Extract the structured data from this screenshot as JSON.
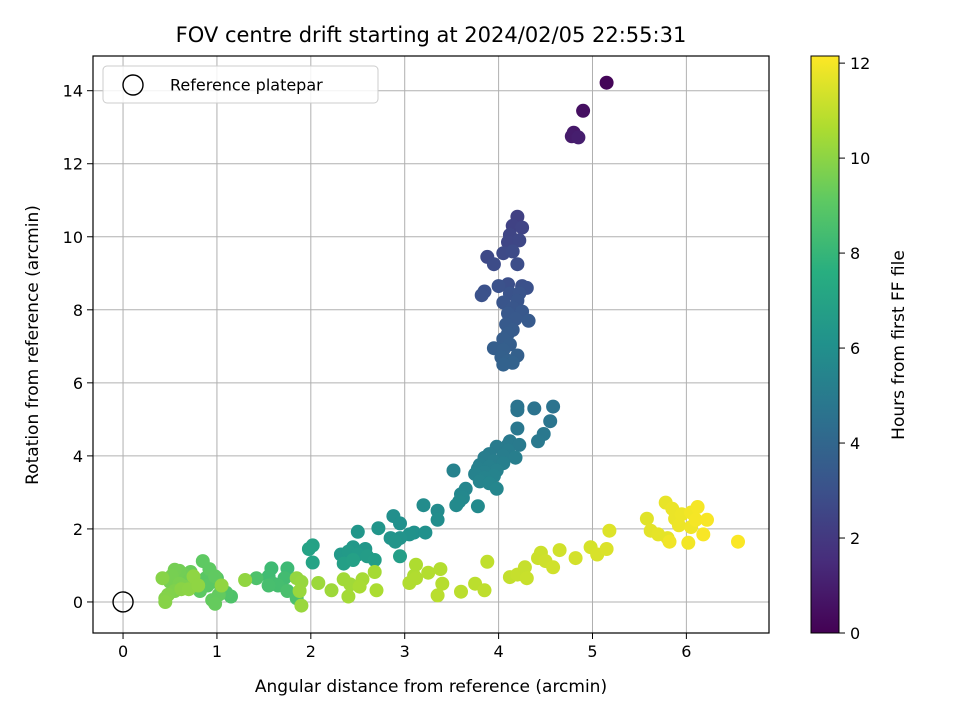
{
  "chart_data": {
    "type": "scatter",
    "title": "FOV centre drift starting at 2024/02/05 22:55:31",
    "xlabel": "Angular distance from reference (arcmin)",
    "ylabel": "Rotation from reference (arcmin)",
    "xlim": [
      -0.32,
      6.88
    ],
    "ylim": [
      -0.85,
      14.95
    ],
    "xticks": [
      0,
      1,
      2,
      3,
      4,
      5,
      6
    ],
    "yticks": [
      0,
      2,
      4,
      6,
      8,
      10,
      12,
      14
    ],
    "grid": true,
    "legend": {
      "position": "top-left",
      "entries": [
        "Reference platepar"
      ]
    },
    "reference_point": {
      "x": 0,
      "y": 0,
      "label": "Reference platepar"
    },
    "colorbar": {
      "label": "Hours from first FF file",
      "colormap": "viridis",
      "range": [
        0,
        12.15
      ],
      "ticks": [
        0,
        2,
        4,
        6,
        8,
        10,
        12
      ]
    },
    "points": [
      [
        5.15,
        14.22,
        0.15
      ],
      [
        4.9,
        13.45,
        0.5
      ],
      [
        4.8,
        12.85,
        0.8
      ],
      [
        4.78,
        12.75,
        0.9
      ],
      [
        4.85,
        12.72,
        1.0
      ],
      [
        4.2,
        10.55,
        2.3
      ],
      [
        4.15,
        10.3,
        2.4
      ],
      [
        4.25,
        10.25,
        2.45
      ],
      [
        4.12,
        10.05,
        2.5
      ],
      [
        4.1,
        9.85,
        2.55
      ],
      [
        4.22,
        9.9,
        2.6
      ],
      [
        3.88,
        9.45,
        2.65
      ],
      [
        4.05,
        9.55,
        2.7
      ],
      [
        4.15,
        9.6,
        2.75
      ],
      [
        3.95,
        9.25,
        2.8
      ],
      [
        4.2,
        9.25,
        2.85
      ],
      [
        4.1,
        8.7,
        2.9
      ],
      [
        4.25,
        8.65,
        2.95
      ],
      [
        4.3,
        8.6,
        3.0
      ],
      [
        3.85,
        8.5,
        3.0
      ],
      [
        3.82,
        8.4,
        3.05
      ],
      [
        4.0,
        8.65,
        3.05
      ],
      [
        4.12,
        8.45,
        3.1
      ],
      [
        4.22,
        8.45,
        3.15
      ],
      [
        4.2,
        8.25,
        3.2
      ],
      [
        4.05,
        8.2,
        3.2
      ],
      [
        4.15,
        8.05,
        3.25
      ],
      [
        4.25,
        7.95,
        3.3
      ],
      [
        4.1,
        7.9,
        3.3
      ],
      [
        4.18,
        7.75,
        3.35
      ],
      [
        4.32,
        7.7,
        3.4
      ],
      [
        4.08,
        7.6,
        3.4
      ],
      [
        4.15,
        7.45,
        3.45
      ],
      [
        4.1,
        7.35,
        3.5
      ],
      [
        4.05,
        7.2,
        3.55
      ],
      [
        4.12,
        7.05,
        3.6
      ],
      [
        3.95,
        6.95,
        3.6
      ],
      [
        4.05,
        6.9,
        3.65
      ],
      [
        4.2,
        6.75,
        3.7
      ],
      [
        4.03,
        6.7,
        3.7
      ],
      [
        4.1,
        6.6,
        3.75
      ],
      [
        4.15,
        6.55,
        3.8
      ],
      [
        4.05,
        6.5,
        3.8
      ],
      [
        4.2,
        5.35,
        4.6
      ],
      [
        4.2,
        5.25,
        4.65
      ],
      [
        4.38,
        5.3,
        4.6
      ],
      [
        4.58,
        5.35,
        4.6
      ],
      [
        4.55,
        4.95,
        4.7
      ],
      [
        4.2,
        4.75,
        4.8
      ],
      [
        4.48,
        4.6,
        4.85
      ],
      [
        4.42,
        4.4,
        4.9
      ],
      [
        4.12,
        4.4,
        4.9
      ],
      [
        4.1,
        4.3,
        4.95
      ],
      [
        4.22,
        4.3,
        4.95
      ],
      [
        3.98,
        4.25,
        5.0
      ],
      [
        4.1,
        4.15,
        5.05
      ],
      [
        3.9,
        4.05,
        5.05
      ],
      [
        4.05,
        4.0,
        5.1
      ],
      [
        3.85,
        3.95,
        5.1
      ],
      [
        4.18,
        3.95,
        5.15
      ],
      [
        3.95,
        3.85,
        5.15
      ],
      [
        4.05,
        3.8,
        5.2
      ],
      [
        3.8,
        3.75,
        5.2
      ],
      [
        3.9,
        3.7,
        5.25
      ],
      [
        3.78,
        3.65,
        5.25
      ],
      [
        3.98,
        3.6,
        5.3
      ],
      [
        3.85,
        3.55,
        5.3
      ],
      [
        3.75,
        3.5,
        5.35
      ],
      [
        3.52,
        3.6,
        5.35
      ],
      [
        3.95,
        3.45,
        5.4
      ],
      [
        3.85,
        3.4,
        5.4
      ],
      [
        3.8,
        3.3,
        5.45
      ],
      [
        3.9,
        3.25,
        5.5
      ],
      [
        3.98,
        3.1,
        5.55
      ],
      [
        3.65,
        3.1,
        5.55
      ],
      [
        3.6,
        2.95,
        5.6
      ],
      [
        3.62,
        2.85,
        5.65
      ],
      [
        3.58,
        2.75,
        5.7
      ],
      [
        3.55,
        2.65,
        5.75
      ],
      [
        3.78,
        2.62,
        5.75
      ],
      [
        3.35,
        2.5,
        5.8
      ],
      [
        3.2,
        2.65,
        5.85
      ],
      [
        3.35,
        2.25,
        5.9
      ],
      [
        2.88,
        2.35,
        6.0
      ],
      [
        2.95,
        2.15,
        6.05
      ],
      [
        3.1,
        1.9,
        6.1
      ],
      [
        3.22,
        1.9,
        6.1
      ],
      [
        3.05,
        1.85,
        6.15
      ],
      [
        2.95,
        1.75,
        6.2
      ],
      [
        2.85,
        1.75,
        6.25
      ],
      [
        2.9,
        1.65,
        6.3
      ],
      [
        2.72,
        2.02,
        6.3
      ],
      [
        2.5,
        1.92,
        6.35
      ],
      [
        2.58,
        1.45,
        6.4
      ],
      [
        2.45,
        1.5,
        6.45
      ],
      [
        2.32,
        1.3,
        6.5
      ],
      [
        2.4,
        1.38,
        6.55
      ],
      [
        2.5,
        1.3,
        6.6
      ],
      [
        2.6,
        1.25,
        6.65
      ],
      [
        2.68,
        1.15,
        6.7
      ],
      [
        2.95,
        1.25,
        6.75
      ],
      [
        2.35,
        1.05,
        6.8
      ],
      [
        2.45,
        1.15,
        6.85
      ],
      [
        2.02,
        1.55,
        6.9
      ],
      [
        1.98,
        1.45,
        6.95
      ],
      [
        2.02,
        1.08,
        7.0
      ],
      [
        1.75,
        0.92,
        8.2
      ],
      [
        1.58,
        0.92,
        8.25
      ],
      [
        1.55,
        0.7,
        8.3
      ],
      [
        1.72,
        0.65,
        8.35
      ],
      [
        1.6,
        0.5,
        8.4
      ],
      [
        1.65,
        0.45,
        8.45
      ],
      [
        1.55,
        0.45,
        8.5
      ],
      [
        1.75,
        0.3,
        8.55
      ],
      [
        1.85,
        0.1,
        8.6
      ],
      [
        1.42,
        0.65,
        8.65
      ],
      [
        1.15,
        0.15,
        8.7
      ],
      [
        1.1,
        0.25,
        8.75
      ],
      [
        1.05,
        0.4,
        8.8
      ],
      [
        1.0,
        0.65,
        8.85
      ],
      [
        0.95,
        0.55,
        8.9
      ],
      [
        0.88,
        0.65,
        8.95
      ],
      [
        0.9,
        0.45,
        9.0
      ],
      [
        0.82,
        0.3,
        9.05
      ],
      [
        0.85,
        1.12,
        9.1
      ],
      [
        0.92,
        0.9,
        9.1
      ],
      [
        0.98,
        0.7,
        9.15
      ],
      [
        1.02,
        0.2,
        9.2
      ],
      [
        0.95,
        0.05,
        9.2
      ],
      [
        0.98,
        -0.05,
        9.25
      ],
      [
        0.7,
        0.6,
        9.3
      ],
      [
        0.72,
        0.82,
        9.35
      ],
      [
        0.75,
        0.52,
        9.4
      ],
      [
        0.65,
        0.75,
        9.45
      ],
      [
        0.6,
        0.85,
        9.5
      ],
      [
        0.55,
        0.88,
        9.55
      ],
      [
        0.52,
        0.72,
        9.6
      ],
      [
        0.5,
        0.55,
        9.6
      ],
      [
        0.6,
        0.5,
        9.65
      ],
      [
        0.65,
        0.42,
        9.7
      ],
      [
        0.55,
        0.3,
        9.75
      ],
      [
        0.48,
        0.2,
        9.8
      ],
      [
        0.45,
        0.1,
        9.85
      ],
      [
        0.45,
        0.0,
        9.9
      ],
      [
        0.42,
        0.65,
        9.9
      ],
      [
        0.62,
        0.35,
        9.95
      ],
      [
        0.7,
        0.35,
        10.0
      ],
      [
        0.75,
        0.7,
        10.05
      ],
      [
        0.8,
        0.45,
        10.05
      ],
      [
        1.05,
        0.45,
        10.1
      ],
      [
        1.3,
        0.6,
        10.1
      ],
      [
        1.85,
        0.65,
        10.15
      ],
      [
        1.9,
        0.55,
        10.2
      ],
      [
        1.88,
        0.3,
        10.25
      ],
      [
        1.9,
        -0.1,
        10.25
      ],
      [
        2.08,
        0.52,
        10.3
      ],
      [
        2.22,
        0.32,
        10.35
      ],
      [
        2.35,
        0.62,
        10.4
      ],
      [
        2.42,
        0.48,
        10.4
      ],
      [
        2.4,
        0.15,
        10.45
      ],
      [
        2.55,
        0.62,
        10.5
      ],
      [
        2.68,
        0.82,
        10.5
      ],
      [
        2.52,
        0.42,
        10.55
      ],
      [
        2.7,
        0.32,
        10.6
      ],
      [
        3.12,
        1.02,
        10.65
      ],
      [
        3.1,
        0.72,
        10.65
      ],
      [
        3.05,
        0.52,
        10.7
      ],
      [
        3.12,
        0.65,
        10.7
      ],
      [
        3.25,
        0.8,
        10.75
      ],
      [
        3.38,
        0.9,
        10.75
      ],
      [
        3.4,
        0.5,
        10.8
      ],
      [
        3.35,
        0.18,
        10.85
      ],
      [
        3.6,
        0.28,
        10.9
      ],
      [
        3.75,
        0.5,
        10.9
      ],
      [
        3.85,
        0.32,
        10.95
      ],
      [
        3.88,
        1.1,
        11.0
      ],
      [
        4.12,
        0.68,
        11.05
      ],
      [
        4.2,
        0.75,
        11.1
      ],
      [
        4.28,
        0.95,
        11.1
      ],
      [
        4.3,
        0.65,
        11.15
      ],
      [
        4.42,
        1.2,
        11.2
      ],
      [
        4.45,
        1.35,
        11.2
      ],
      [
        4.5,
        1.12,
        11.25
      ],
      [
        4.58,
        0.95,
        11.3
      ],
      [
        4.65,
        1.42,
        11.3
      ],
      [
        4.82,
        1.2,
        11.35
      ],
      [
        4.98,
        1.5,
        11.4
      ],
      [
        5.05,
        1.3,
        11.45
      ],
      [
        5.15,
        1.45,
        11.5
      ],
      [
        5.18,
        1.95,
        11.55
      ],
      [
        5.58,
        2.28,
        11.6
      ],
      [
        5.62,
        1.95,
        11.65
      ],
      [
        5.7,
        1.85,
        11.7
      ],
      [
        5.8,
        1.75,
        11.7
      ],
      [
        5.78,
        2.72,
        11.75
      ],
      [
        5.85,
        2.55,
        11.8
      ],
      [
        5.88,
        2.28,
        11.8
      ],
      [
        5.92,
        2.1,
        11.85
      ],
      [
        5.95,
        2.4,
        11.85
      ],
      [
        5.82,
        1.65,
        11.9
      ],
      [
        6.05,
        2.05,
        11.9
      ],
      [
        6.02,
        1.62,
        11.95
      ],
      [
        6.05,
        2.45,
        11.95
      ],
      [
        6.12,
        2.6,
        12.0
      ],
      [
        6.1,
        2.25,
        12.0
      ],
      [
        6.18,
        1.85,
        12.05
      ],
      [
        6.22,
        2.25,
        12.05
      ],
      [
        6.55,
        1.65,
        12.1
      ]
    ]
  }
}
